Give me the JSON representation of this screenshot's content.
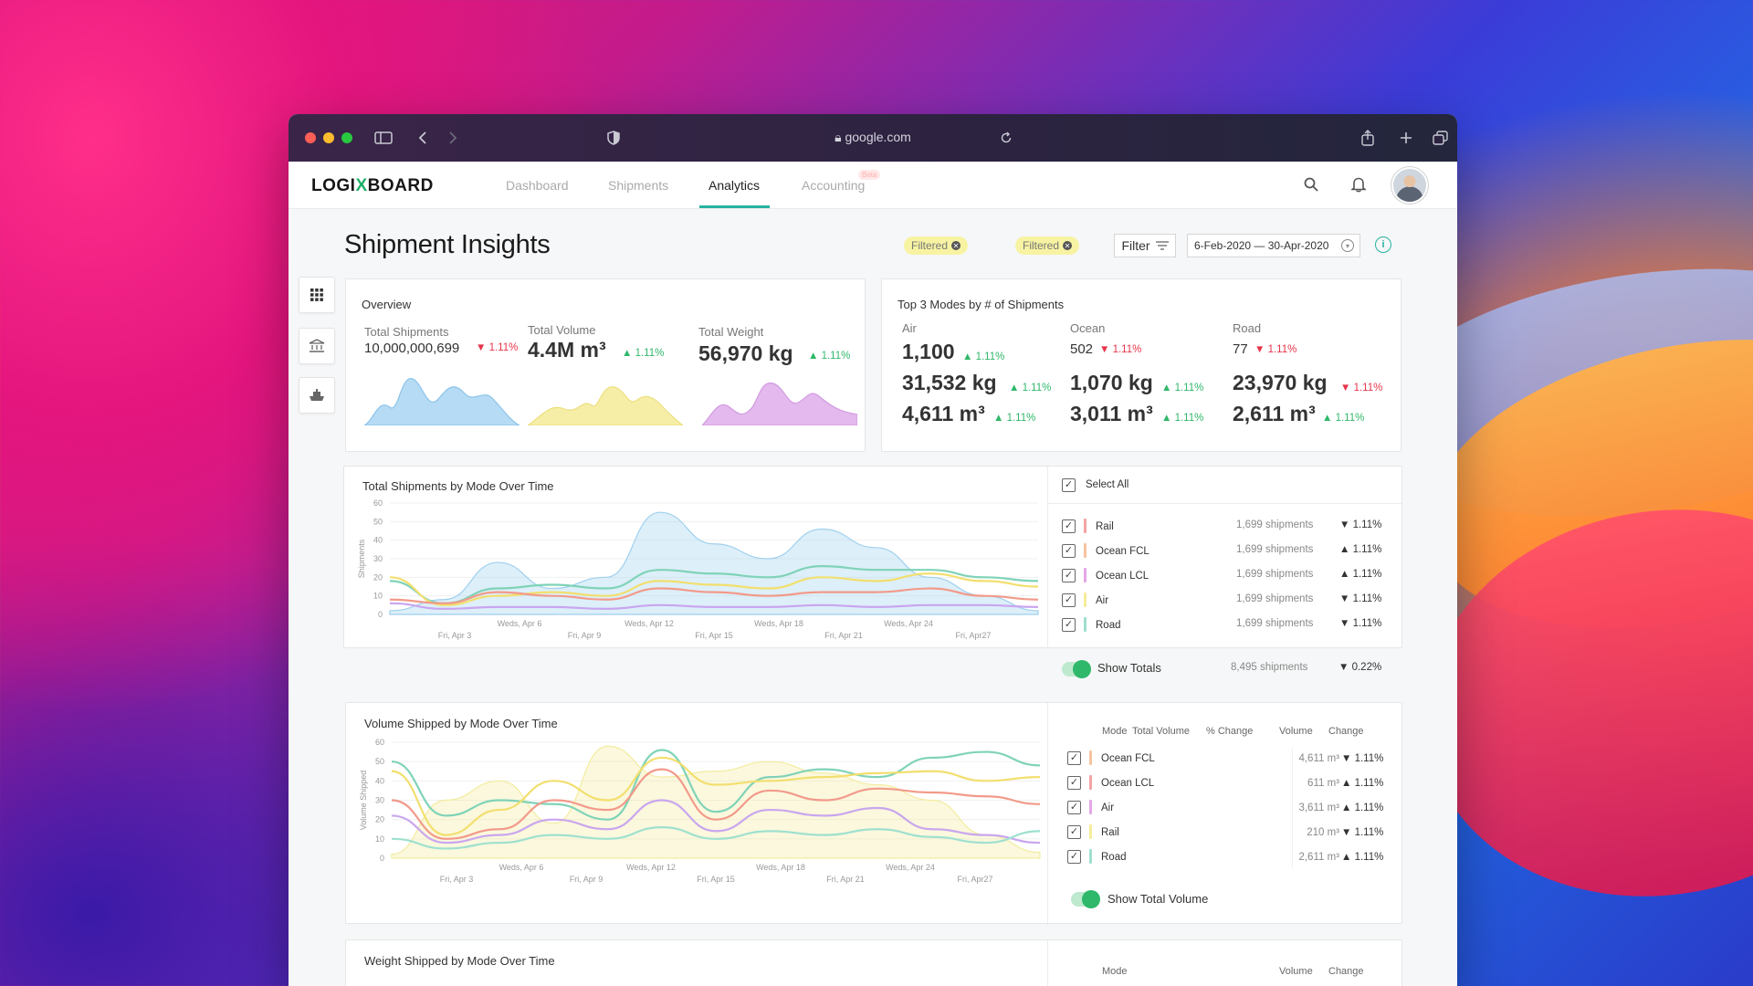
{
  "browser": {
    "url": "google.com"
  },
  "nav": {
    "logo_part1": "LOGI",
    "logo_x": "X",
    "logo_part2": "BOARD",
    "links": [
      "Dashboard",
      "Shipments",
      "Analytics",
      "Accounting"
    ],
    "beta": "Beta"
  },
  "page": {
    "title": "Shipment Insights",
    "chip1": "Filtered",
    "chip2": "Filtered",
    "filter_label": "Filter",
    "date_range": "6-Feb-2020 — 30-Apr-2020"
  },
  "overview": {
    "title": "Overview",
    "shipments_label": "Total Shipments",
    "shipments_value": "10,000,000,699",
    "shipments_change": "▼ 1.11%",
    "volume_label": "Total Volume",
    "volume_value": "4.4M m³",
    "volume_change": "▲ 1.11%",
    "weight_label": "Total Weight",
    "weight_value": "56,970 kg",
    "weight_change": "▲ 1.11%"
  },
  "top3": {
    "title": "Top 3 Modes by # of Shipments",
    "modes": [
      {
        "name": "Air",
        "count": "1,100",
        "count_change": "▲ 1.11%",
        "weight": "31,532 kg",
        "weight_change": "▲ 1.11%",
        "volume": "4,611 m³",
        "volume_change": "▲ 1.11%"
      },
      {
        "name": "Ocean",
        "count": "502",
        "count_change": "▼ 1.11%",
        "weight": "1,070 kg",
        "weight_change": "▲ 1.11%",
        "volume": "3,011 m³",
        "volume_change": "▲ 1.11%"
      },
      {
        "name": "Road",
        "count": "77",
        "count_change": "▼ 1.11%",
        "weight": "23,970 kg",
        "weight_change": "▼ 1.11%",
        "volume": "2,611 m³",
        "volume_change": "▲ 1.11%"
      }
    ]
  },
  "shipments_chart": {
    "title": "Total Shipments by Mode Over Time",
    "select_all": "Select All",
    "rows": [
      {
        "name": "Rail",
        "value": "1,699 shipments",
        "change": "▼ 1.11%",
        "color": "#f5a3a3"
      },
      {
        "name": "Ocean FCL",
        "value": "1,699 shipments",
        "change": "▲ 1.11%",
        "color": "#f7c3a0"
      },
      {
        "name": "Ocean LCL",
        "value": "1,699 shipments",
        "change": "▲ 1.11%",
        "color": "#e6a6e8"
      },
      {
        "name": "Air",
        "value": "1,699 shipments",
        "change": "▼ 1.11%",
        "color": "#f6ec9a"
      },
      {
        "name": "Road",
        "value": "1,699 shipments",
        "change": "▼ 1.11%",
        "color": "#9fe0cf"
      }
    ],
    "show_totals": "Show Totals",
    "totals_value": "8,495 shipments",
    "totals_change": "▼ 0.22%"
  },
  "volume_chart": {
    "title": "Volume Shipped by Mode Over Time",
    "headers": {
      "mode": "Mode",
      "total": "Total Volume",
      "pct": "% Change",
      "volume": "Volume",
      "change": "Change"
    },
    "rows": [
      {
        "name": "Ocean FCL",
        "value": "4,611 m³",
        "change": "▼ 1.11%",
        "color": "#f7c3a0"
      },
      {
        "name": "Ocean LCL",
        "value": "611 m³",
        "change": "▲ 1.11%",
        "color": "#f5a3a3"
      },
      {
        "name": "Air",
        "value": "3,611 m³",
        "change": "▲ 1.11%",
        "color": "#e6a6e8"
      },
      {
        "name": "Rail",
        "value": "210 m³",
        "change": "▼ 1.11%",
        "color": "#f6ec9a"
      },
      {
        "name": "Road",
        "value": "2,611 m³",
        "change": "▲ 1.11%",
        "color": "#9fe0cf"
      }
    ],
    "show_total": "Show Total Volume"
  },
  "weight_chart": {
    "title": "Weight Shipped by Mode Over Time",
    "headers": {
      "mode": "Mode",
      "volume": "Volume",
      "change": "Change"
    }
  },
  "chart_data": [
    {
      "type": "area",
      "title": "Total Shipments by Mode Over Time",
      "ylabel": "Shipments",
      "ylim": [
        0,
        60
      ],
      "yticks": [
        0,
        10,
        20,
        30,
        40,
        50,
        60
      ],
      "xticks_top": [
        "Weds, Apr 6",
        "Weds, Apr 12",
        "Weds, Apr 18",
        "Weds, Apr 24"
      ],
      "xticks_bottom": [
        "Fri, Apr 3",
        "Fri, Apr 9",
        "Fri, Apr 15",
        "Fri, Apr 21",
        "Fri, Apr27"
      ],
      "x": [
        0,
        1,
        2,
        3,
        4,
        5,
        6,
        7,
        8,
        9,
        10,
        11,
        12
      ],
      "series": [
        {
          "name": "Total",
          "color": "#9fd0ee",
          "fill": true,
          "values": [
            2,
            8,
            28,
            14,
            20,
            55,
            38,
            30,
            46,
            36,
            20,
            10,
            2
          ]
        },
        {
          "name": "Road",
          "color": "#7fd3b8",
          "values": [
            18,
            6,
            14,
            16,
            14,
            24,
            22,
            20,
            26,
            24,
            24,
            20,
            18
          ]
        },
        {
          "name": "Air",
          "color": "#f2df6e",
          "values": [
            20,
            5,
            10,
            12,
            10,
            18,
            16,
            14,
            20,
            18,
            22,
            18,
            15
          ]
        },
        {
          "name": "Rail",
          "color": "#f29a8a",
          "values": [
            8,
            6,
            12,
            10,
            8,
            14,
            12,
            10,
            12,
            12,
            14,
            10,
            8
          ]
        },
        {
          "name": "Ocean LCL",
          "color": "#c9a6ef",
          "values": [
            6,
            3,
            4,
            4,
            3,
            5,
            4,
            4,
            5,
            4,
            5,
            5,
            4
          ]
        }
      ]
    },
    {
      "type": "area",
      "title": "Volume Shipped by Mode Over Time",
      "ylabel": "Volume Shipped",
      "ylim": [
        0,
        60
      ],
      "yticks": [
        0,
        10,
        20,
        30,
        40,
        50,
        60
      ],
      "xticks_top": [
        "Weds, Apr 6",
        "Weds, Apr 12",
        "Weds, Apr 18",
        "Weds, Apr 24"
      ],
      "xticks_bottom": [
        "Fri, Apr 3",
        "Fri, Apr 9",
        "Fri, Apr 15",
        "Fri, Apr 21",
        "Fri, Apr27"
      ],
      "x": [
        0,
        1,
        2,
        3,
        4,
        5,
        6,
        7,
        8,
        9,
        10,
        11,
        12
      ],
      "series": [
        {
          "name": "Total",
          "color": "#f3ec9e",
          "fill": true,
          "values": [
            2,
            30,
            40,
            18,
            58,
            42,
            45,
            50,
            44,
            38,
            30,
            12,
            3
          ]
        },
        {
          "name": "Road",
          "color": "#7fd3b8",
          "values": [
            50,
            22,
            30,
            28,
            20,
            56,
            24,
            42,
            46,
            42,
            52,
            55,
            48
          ]
        },
        {
          "name": "Air",
          "color": "#f2df6e",
          "values": [
            45,
            12,
            25,
            40,
            30,
            52,
            38,
            40,
            42,
            44,
            45,
            40,
            42
          ]
        },
        {
          "name": "Ocean FCL",
          "color": "#f29a8a",
          "values": [
            30,
            10,
            15,
            30,
            25,
            46,
            20,
            35,
            30,
            36,
            34,
            32,
            28
          ]
        },
        {
          "name": "Ocean LCL",
          "color": "#c9a6ef",
          "values": [
            22,
            8,
            12,
            20,
            15,
            30,
            14,
            25,
            22,
            26,
            15,
            12,
            8
          ]
        },
        {
          "name": "Rail",
          "color": "#9fe0cf",
          "values": [
            10,
            5,
            8,
            12,
            10,
            16,
            10,
            14,
            12,
            15,
            11,
            8,
            14
          ]
        }
      ]
    }
  ]
}
